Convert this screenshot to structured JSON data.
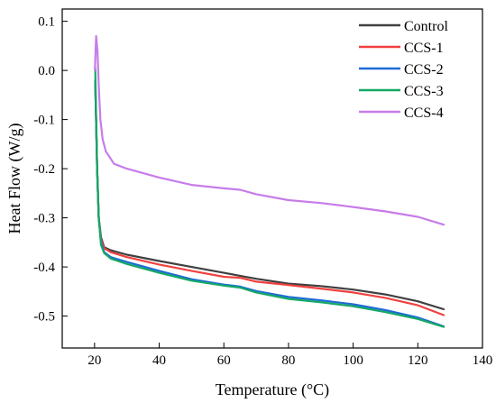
{
  "chart_data": {
    "type": "line",
    "xlabel": "Temperature (°C)",
    "ylabel": "Heat Flow (W/g)",
    "xlim": [
      10,
      140
    ],
    "ylim": [
      -0.565,
      0.125
    ],
    "xticks": [
      20,
      40,
      60,
      80,
      100,
      120,
      140
    ],
    "yticks": [
      0.1,
      0.0,
      -0.1,
      -0.2,
      -0.3,
      -0.4,
      -0.5
    ],
    "ytick_labels": [
      "0.1",
      "0.0",
      "-0.1",
      "-0.2",
      "-0.3",
      "-0.4",
      "-0.5"
    ],
    "grid": false,
    "legend_position": "top-right",
    "series": [
      {
        "name": "Control",
        "color": "#404040",
        "points": [
          [
            20.2,
            -0.02
          ],
          [
            20.8,
            -0.2
          ],
          [
            21.3,
            -0.3
          ],
          [
            22,
            -0.34
          ],
          [
            23,
            -0.36
          ],
          [
            25,
            -0.366
          ],
          [
            30,
            -0.375
          ],
          [
            40,
            -0.388
          ],
          [
            50,
            -0.4
          ],
          [
            60,
            -0.412
          ],
          [
            65,
            -0.418
          ],
          [
            70,
            -0.424
          ],
          [
            80,
            -0.434
          ],
          [
            90,
            -0.439
          ],
          [
            100,
            -0.446
          ],
          [
            110,
            -0.456
          ],
          [
            120,
            -0.47
          ],
          [
            128,
            -0.486
          ]
        ]
      },
      {
        "name": "CCS-1",
        "color": "#f0413e",
        "points": [
          [
            20.2,
            -0.02
          ],
          [
            20.8,
            -0.2
          ],
          [
            21.3,
            -0.3
          ],
          [
            22,
            -0.345
          ],
          [
            23,
            -0.362
          ],
          [
            25,
            -0.37
          ],
          [
            30,
            -0.38
          ],
          [
            40,
            -0.395
          ],
          [
            50,
            -0.408
          ],
          [
            60,
            -0.42
          ],
          [
            65,
            -0.422
          ],
          [
            70,
            -0.43
          ],
          [
            80,
            -0.437
          ],
          [
            90,
            -0.444
          ],
          [
            100,
            -0.452
          ],
          [
            110,
            -0.463
          ],
          [
            120,
            -0.478
          ],
          [
            128,
            -0.498
          ]
        ]
      },
      {
        "name": "CCS-2",
        "color": "#1e6bd6",
        "points": [
          [
            20.2,
            -0.02
          ],
          [
            20.8,
            -0.2
          ],
          [
            21.3,
            -0.3
          ],
          [
            22,
            -0.35
          ],
          [
            23,
            -0.37
          ],
          [
            25,
            -0.38
          ],
          [
            30,
            -0.39
          ],
          [
            40,
            -0.408
          ],
          [
            50,
            -0.425
          ],
          [
            60,
            -0.436
          ],
          [
            65,
            -0.44
          ],
          [
            70,
            -0.449
          ],
          [
            80,
            -0.461
          ],
          [
            90,
            -0.468
          ],
          [
            100,
            -0.476
          ],
          [
            110,
            -0.488
          ],
          [
            120,
            -0.503
          ],
          [
            128,
            -0.521
          ]
        ]
      },
      {
        "name": "CCS-3",
        "color": "#15a865",
        "points": [
          [
            20.2,
            0.005
          ],
          [
            20.8,
            -0.2
          ],
          [
            21.3,
            -0.3
          ],
          [
            22,
            -0.355
          ],
          [
            23,
            -0.372
          ],
          [
            25,
            -0.383
          ],
          [
            30,
            -0.394
          ],
          [
            40,
            -0.412
          ],
          [
            50,
            -0.428
          ],
          [
            60,
            -0.438
          ],
          [
            65,
            -0.442
          ],
          [
            70,
            -0.452
          ],
          [
            80,
            -0.465
          ],
          [
            90,
            -0.472
          ],
          [
            100,
            -0.48
          ],
          [
            110,
            -0.492
          ],
          [
            120,
            -0.506
          ],
          [
            128,
            -0.522
          ]
        ]
      },
      {
        "name": "CCS-4",
        "color": "#c77ce8",
        "points": [
          [
            20.1,
            0.0
          ],
          [
            20.5,
            0.07
          ],
          [
            20.9,
            0.04
          ],
          [
            21.3,
            -0.03
          ],
          [
            21.8,
            -0.1
          ],
          [
            22.5,
            -0.14
          ],
          [
            23.5,
            -0.165
          ],
          [
            25,
            -0.18
          ],
          [
            26,
            -0.19
          ],
          [
            30,
            -0.2
          ],
          [
            40,
            -0.218
          ],
          [
            50,
            -0.233
          ],
          [
            60,
            -0.24
          ],
          [
            65,
            -0.243
          ],
          [
            70,
            -0.252
          ],
          [
            80,
            -0.264
          ],
          [
            90,
            -0.27
          ],
          [
            100,
            -0.278
          ],
          [
            110,
            -0.287
          ],
          [
            120,
            -0.298
          ],
          [
            128,
            -0.314
          ]
        ]
      }
    ]
  }
}
